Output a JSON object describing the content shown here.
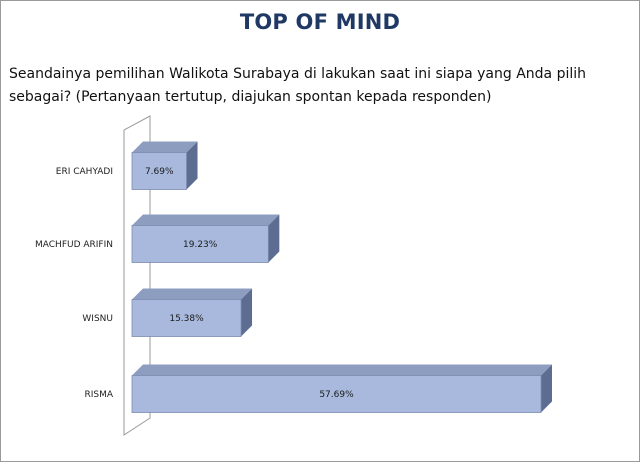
{
  "page": {
    "title": "TOP OF MIND",
    "question": "Seandainya pemilihan Walikota Surabaya di lakukan saat ini siapa yang Anda pilih sebagai? (Pertanyaan tertutup, diajukan spontan kepada responden)"
  },
  "chart_data": {
    "type": "bar",
    "orientation": "horizontal",
    "style": "3d",
    "categories": [
      "ERI CAHYADI",
      "MACHFUD ARIFIN",
      "WISNU",
      "RISMA"
    ],
    "values": [
      7.69,
      19.23,
      15.38,
      57.69
    ],
    "value_labels": [
      "7.69%",
      "19.23%",
      "15.38%",
      "57.69%"
    ],
    "xlim": [
      0,
      57.69
    ],
    "grid": false,
    "legend": "none",
    "colors": {
      "bar_front": "#a8b9dd",
      "bar_top": "#8d9dc0",
      "bar_side": "#5d6d92",
      "bar_edge": "#7c8cb0",
      "wall": "#9a9a9a",
      "title": "#1f3864"
    }
  }
}
